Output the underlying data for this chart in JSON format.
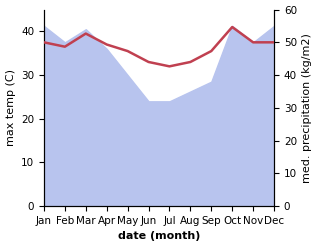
{
  "months": [
    "Jan",
    "Feb",
    "Mar",
    "Apr",
    "May",
    "Jun",
    "Jul",
    "Aug",
    "Sep",
    "Oct",
    "Nov",
    "Dec"
  ],
  "max_temp": [
    37.5,
    36.5,
    39.5,
    37.0,
    35.5,
    33.0,
    32.0,
    33.0,
    35.5,
    41.0,
    37.5,
    37.5
  ],
  "med_precip": [
    55.0,
    50.0,
    54.0,
    48.0,
    40.0,
    32.0,
    32.0,
    35.0,
    38.0,
    55.0,
    50.0,
    55.0
  ],
  "temp_color": "#c04050",
  "precip_fill_color": "#b8c4ee",
  "ylim_left": [
    0,
    45
  ],
  "ylim_right": [
    0,
    60
  ],
  "yticks_left": [
    0,
    10,
    20,
    30,
    40
  ],
  "yticks_right": [
    0,
    10,
    20,
    30,
    40,
    50,
    60
  ],
  "xlabel": "date (month)",
  "ylabel_left": "max temp (C)",
  "ylabel_right": "med. precipitation (kg/m2)",
  "bg_color": "#ffffff",
  "label_fontsize": 8,
  "tick_fontsize": 7.5,
  "temp_linewidth": 1.8
}
